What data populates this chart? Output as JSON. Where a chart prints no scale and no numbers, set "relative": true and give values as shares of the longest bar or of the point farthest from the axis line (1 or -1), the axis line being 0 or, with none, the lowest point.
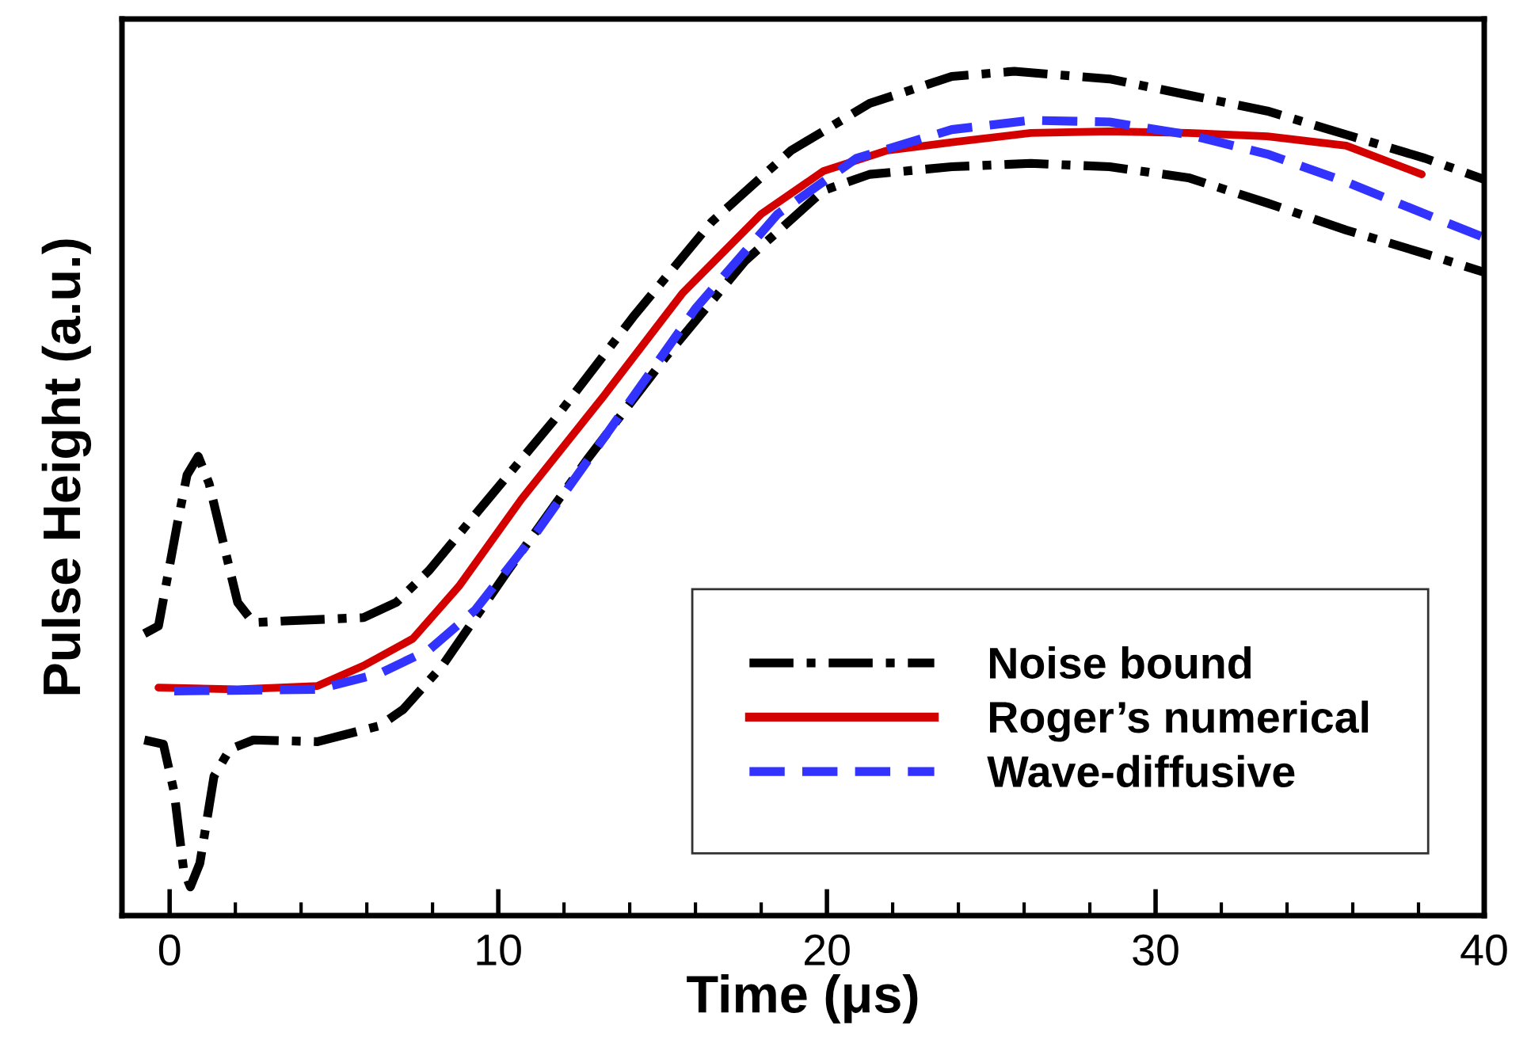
{
  "chart_data": {
    "type": "line",
    "relative": true,
    "xlabel": "Time (μs)",
    "ylabel": "Pulse Height (a.u.)",
    "xlim": [
      -1.45,
      40
    ],
    "xticks": [
      0,
      10,
      20,
      30,
      40
    ],
    "grid": false,
    "legend": "bottom right",
    "marker": "none",
    "tick_labels": "x",
    "series": [
      {
        "name": "Noise bound",
        "color": "#000000",
        "line_style": "dashdot",
        "x": [
          -0.77,
          -0.34,
          0.24,
          0.53,
          0.87,
          1.2,
          1.6,
          2.07,
          2.55,
          3.5,
          5.9,
          6.9,
          7.9,
          9.3,
          11.7,
          14.1,
          16.5,
          18.9,
          21.3,
          23.8,
          25.7,
          28.6,
          31.0,
          33.4,
          35.8,
          38.2,
          40
        ],
        "values": [
          0.334,
          0.343,
          0.465,
          0.522,
          0.544,
          0.512,
          0.447,
          0.371,
          0.347,
          0.349,
          0.353,
          0.371,
          0.409,
          0.475,
          0.587,
          0.709,
          0.822,
          0.906,
          0.962,
          0.994,
          1.0,
          0.991,
          0.972,
          0.953,
          0.925,
          0.897,
          0.872
        ]
      },
      {
        "color": "#000000",
        "line_style": "dashdot",
        "x": [
          -0.77,
          -0.19,
          0.14,
          0.43,
          0.63,
          0.92,
          1.35,
          1.83,
          2.55,
          4.5,
          6.4,
          7.1,
          8.3,
          10.3,
          12.7,
          15.1,
          17.5,
          19.9,
          21.3,
          23.8,
          26.2,
          28.6,
          31.0,
          33.4,
          35.8,
          38.2,
          40
        ],
        "values": [
          0.208,
          0.203,
          0.146,
          0.053,
          0.034,
          0.062,
          0.165,
          0.197,
          0.208,
          0.206,
          0.225,
          0.244,
          0.296,
          0.409,
          0.54,
          0.662,
          0.775,
          0.859,
          0.878,
          0.887,
          0.891,
          0.887,
          0.874,
          0.844,
          0.812,
          0.784,
          0.762
        ]
      },
      {
        "name": "Roger’s numerical",
        "color": "#d40000",
        "line_style": "solid",
        "x": [
          -0.34,
          2.07,
          4.5,
          5.9,
          7.4,
          8.8,
          10.7,
          13.2,
          15.6,
          18.0,
          19.9,
          21.8,
          23.8,
          26.2,
          28.6,
          31.0,
          33.4,
          35.8,
          38.1
        ],
        "values": [
          0.27,
          0.268,
          0.272,
          0.296,
          0.328,
          0.39,
          0.493,
          0.615,
          0.737,
          0.831,
          0.882,
          0.906,
          0.916,
          0.927,
          0.929,
          0.927,
          0.923,
          0.912,
          0.878
        ]
      },
      {
        "name": "Wave-diffusive",
        "color": "#3333ff",
        "line_style": "dashed",
        "x": [
          0.14,
          4.5,
          6.4,
          7.9,
          9.3,
          11.2,
          13.6,
          16.0,
          18.5,
          20.9,
          23.8,
          26.2,
          28.6,
          31.0,
          33.4,
          35.8,
          38.2,
          40
        ],
        "values": [
          0.266,
          0.268,
          0.287,
          0.315,
          0.362,
          0.456,
          0.587,
          0.719,
          0.831,
          0.897,
          0.931,
          0.942,
          0.94,
          0.925,
          0.902,
          0.869,
          0.831,
          0.803
        ]
      }
    ]
  }
}
